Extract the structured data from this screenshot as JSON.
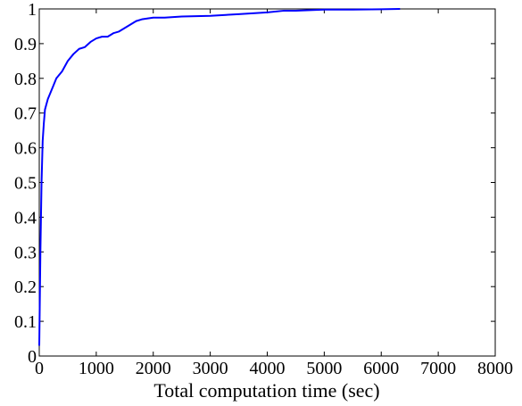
{
  "chart_data": {
    "type": "line",
    "title": "",
    "xlabel": "Total computation time (sec)",
    "ylabel": "",
    "xlim": [
      0,
      8000
    ],
    "ylim": [
      0,
      1
    ],
    "x_ticks": [
      0,
      1000,
      2000,
      3000,
      4000,
      5000,
      6000,
      7000,
      8000
    ],
    "x_tick_labels": [
      "0",
      "1000",
      "2000",
      "3000",
      "4000",
      "5000",
      "6000",
      "7000",
      "8000"
    ],
    "y_ticks": [
      0,
      0.1,
      0.2,
      0.3,
      0.4,
      0.5,
      0.6,
      0.7,
      0.8,
      0.9,
      1
    ],
    "y_tick_labels": [
      "0",
      "0.1",
      "0.2",
      "0.3",
      "0.4",
      "0.5",
      "0.6",
      "0.7",
      "0.8",
      "0.9",
      "1"
    ],
    "grid": false,
    "series": [
      {
        "color": "#0000ff",
        "x": [
          0,
          20,
          40,
          60,
          80,
          100,
          150,
          200,
          250,
          300,
          400,
          500,
          600,
          700,
          800,
          900,
          1000,
          1100,
          1200,
          1300,
          1400,
          1500,
          1600,
          1700,
          1800,
          2000,
          2200,
          2500,
          3000,
          3500,
          4000,
          4300,
          4500,
          5000,
          5500,
          6000,
          6330
        ],
        "y": [
          0.03,
          0.3,
          0.5,
          0.62,
          0.67,
          0.71,
          0.74,
          0.76,
          0.78,
          0.8,
          0.82,
          0.85,
          0.87,
          0.885,
          0.89,
          0.905,
          0.915,
          0.92,
          0.92,
          0.93,
          0.935,
          0.945,
          0.955,
          0.965,
          0.97,
          0.975,
          0.975,
          0.978,
          0.98,
          0.985,
          0.99,
          0.995,
          0.995,
          0.998,
          0.998,
          0.999,
          1.0
        ]
      }
    ]
  }
}
